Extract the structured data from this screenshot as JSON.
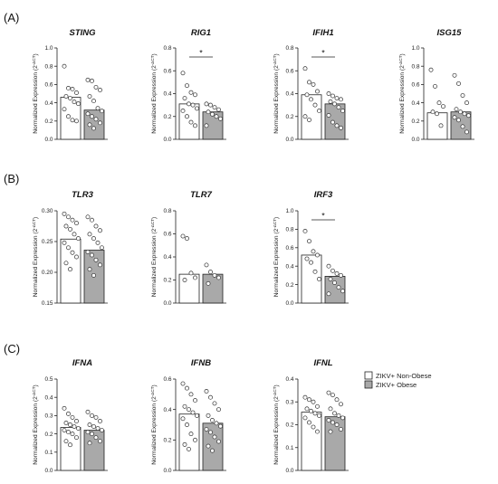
{
  "panels": [
    {
      "label": "(A)"
    },
    {
      "label": "(B)"
    },
    {
      "label": "(C)"
    }
  ],
  "legend": {
    "items": [
      {
        "label": "ZIKV+ Non-Obese",
        "color": "#ffffff"
      },
      {
        "label": "ZIKV+ Obese",
        "color": "#a9a9a9"
      }
    ]
  },
  "colors": {
    "non_obese_bar": "#ffffff",
    "obese_bar": "#a9a9a9",
    "stroke": "#222222",
    "point": "#ffffff"
  },
  "chart_data": [
    {
      "type": "bar",
      "panel": "(A)",
      "title": "STING",
      "ylabel": "Normalized Expression (2^-ΔCT)",
      "ylim": [
        0.0,
        1.0
      ],
      "yticks": [
        "0.0",
        "0.2",
        "0.4",
        "0.6",
        "0.8",
        "1.0"
      ],
      "significance": "",
      "series": [
        {
          "name": "ZIKV+ Non-Obese",
          "values": [
            0.46
          ],
          "points": [
            0.8,
            0.56,
            0.55,
            0.51,
            0.47,
            0.45,
            0.41,
            0.39,
            0.33,
            0.25,
            0.21,
            0.2
          ]
        },
        {
          "name": "ZIKV+ Obese",
          "values": [
            0.32
          ],
          "points": [
            0.65,
            0.64,
            0.57,
            0.54,
            0.47,
            0.42,
            0.34,
            0.31,
            0.28,
            0.25,
            0.22,
            0.18,
            0.16,
            0.12
          ]
        }
      ]
    },
    {
      "type": "bar",
      "panel": "(A)",
      "title": "RIG1",
      "ylabel": "Normalized Expression (2^-ΔCT)",
      "ylim": [
        0.0,
        0.8
      ],
      "yticks": [
        "0.0",
        "0.2",
        "0.4",
        "0.6",
        "0.8"
      ],
      "significance": "*",
      "series": [
        {
          "name": "ZIKV+ Non-Obese",
          "values": [
            0.31
          ],
          "points": [
            0.58,
            0.47,
            0.41,
            0.39,
            0.36,
            0.31,
            0.3,
            0.27,
            0.25,
            0.2,
            0.15,
            0.12
          ]
        },
        {
          "name": "ZIKV+ Obese",
          "values": [
            0.24
          ],
          "points": [
            0.31,
            0.3,
            0.28,
            0.26,
            0.24,
            0.22,
            0.2,
            0.18,
            0.12
          ]
        }
      ]
    },
    {
      "type": "bar",
      "panel": "(A)",
      "title": "IFIH1",
      "ylabel": "Normalized Expression (2^-ΔCT)",
      "ylim": [
        0.0,
        0.8
      ],
      "yticks": [
        "0.0",
        "0.2",
        "0.4",
        "0.6",
        "0.8"
      ],
      "significance": "*",
      "series": [
        {
          "name": "ZIKV+ Non-Obese",
          "values": [
            0.39
          ],
          "points": [
            0.62,
            0.5,
            0.48,
            0.42,
            0.39,
            0.35,
            0.3,
            0.25,
            0.2,
            0.17
          ]
        },
        {
          "name": "ZIKV+ Obese",
          "values": [
            0.31
          ],
          "points": [
            0.4,
            0.38,
            0.36,
            0.35,
            0.33,
            0.31,
            0.28,
            0.25,
            0.21,
            0.15,
            0.12,
            0.1
          ]
        }
      ]
    },
    {
      "type": "bar",
      "panel": "(A)",
      "title": "ISG15",
      "ylabel": "Normalized Expression (2^-ΔCT)",
      "ylim": [
        0.0,
        1.0
      ],
      "yticks": [
        "0.0",
        "0.2",
        "0.4",
        "0.6",
        "0.8",
        "1.0"
      ],
      "significance": "",
      "series": [
        {
          "name": "ZIKV+ Non-Obese",
          "values": [
            0.29
          ],
          "points": [
            0.76,
            0.58,
            0.4,
            0.36,
            0.3,
            0.28,
            0.15
          ]
        },
        {
          "name": "ZIKV+ Obese",
          "values": [
            0.3
          ],
          "points": [
            0.7,
            0.61,
            0.48,
            0.4,
            0.33,
            0.3,
            0.28,
            0.26,
            0.24,
            0.21,
            0.14,
            0.08
          ]
        }
      ]
    },
    {
      "type": "bar",
      "panel": "(B)",
      "title": "TLR3",
      "ylabel": "Normalized Expression (2^-ΔCT)",
      "ylim": [
        0.15,
        0.3
      ],
      "yticks": [
        "0.15",
        "0.20",
        "0.25",
        "0.30"
      ],
      "significance": "",
      "series": [
        {
          "name": "ZIKV+ Non-Obese",
          "values": [
            0.254
          ],
          "points": [
            0.295,
            0.29,
            0.285,
            0.28,
            0.275,
            0.27,
            0.262,
            0.255,
            0.248,
            0.24,
            0.232,
            0.225,
            0.215,
            0.205
          ]
        },
        {
          "name": "ZIKV+ Obese",
          "values": [
            0.236
          ],
          "points": [
            0.29,
            0.285,
            0.275,
            0.268,
            0.262,
            0.255,
            0.248,
            0.24,
            0.233,
            0.228,
            0.22,
            0.212,
            0.205,
            0.195
          ]
        }
      ]
    },
    {
      "type": "bar",
      "panel": "(B)",
      "title": "TLR7",
      "ylabel": "Normalized Expression (2^-ΔCT)",
      "ylim": [
        0.0,
        0.8
      ],
      "yticks": [
        "0.0",
        "0.2",
        "0.4",
        "0.6",
        "0.8"
      ],
      "significance": "",
      "series": [
        {
          "name": "ZIKV+ Non-Obese",
          "values": [
            0.25
          ],
          "points": [
            0.58,
            0.56,
            0.26,
            0.22,
            0.2
          ]
        },
        {
          "name": "ZIKV+ Obese",
          "values": [
            0.25
          ],
          "points": [
            0.33,
            0.27,
            0.24,
            0.22,
            0.17
          ]
        }
      ]
    },
    {
      "type": "bar",
      "panel": "(B)",
      "title": "IRF3",
      "ylabel": "Normalized Expression (2^-ΔCT)",
      "ylim": [
        0.0,
        1.0
      ],
      "yticks": [
        "0.0",
        "0.2",
        "0.4",
        "0.6",
        "0.8",
        "1.0"
      ],
      "significance": "*",
      "series": [
        {
          "name": "ZIKV+ Non-Obese",
          "values": [
            0.52
          ],
          "points": [
            0.78,
            0.67,
            0.56,
            0.52,
            0.48,
            0.44,
            0.34,
            0.26
          ]
        },
        {
          "name": "ZIKV+ Obese",
          "values": [
            0.29
          ],
          "points": [
            0.4,
            0.35,
            0.32,
            0.3,
            0.26,
            0.22,
            0.17,
            0.13,
            0.1
          ]
        }
      ]
    },
    {
      "type": "bar",
      "panel": "(C)",
      "title": "IFNA",
      "ylabel": "Normalized Expression (2^-ΔCT)",
      "ylim": [
        0.0,
        0.5
      ],
      "yticks": [
        "0.0",
        "0.1",
        "0.2",
        "0.3",
        "0.4",
        "0.5"
      ],
      "significance": "",
      "series": [
        {
          "name": "ZIKV+ Non-Obese",
          "values": [
            0.235
          ],
          "points": [
            0.34,
            0.31,
            0.29,
            0.27,
            0.26,
            0.25,
            0.24,
            0.23,
            0.22,
            0.21,
            0.2,
            0.18,
            0.16,
            0.14
          ]
        },
        {
          "name": "ZIKV+ Obese",
          "values": [
            0.22
          ],
          "points": [
            0.32,
            0.3,
            0.29,
            0.27,
            0.25,
            0.24,
            0.23,
            0.22,
            0.21,
            0.2,
            0.18,
            0.16,
            0.15
          ]
        }
      ]
    },
    {
      "type": "bar",
      "panel": "(C)",
      "title": "IFNB",
      "ylabel": "Normalized Expression (2^-ΔCT)",
      "ylim": [
        0.0,
        0.6
      ],
      "yticks": [
        "0.0",
        "0.2",
        "0.4",
        "0.6"
      ],
      "significance": "",
      "series": [
        {
          "name": "ZIKV+ Non-Obese",
          "values": [
            0.37
          ],
          "points": [
            0.57,
            0.54,
            0.5,
            0.46,
            0.42,
            0.4,
            0.38,
            0.36,
            0.34,
            0.3,
            0.24,
            0.2,
            0.17,
            0.14
          ]
        },
        {
          "name": "ZIKV+ Obese",
          "values": [
            0.31
          ],
          "points": [
            0.52,
            0.48,
            0.44,
            0.4,
            0.36,
            0.33,
            0.31,
            0.29,
            0.27,
            0.25,
            0.22,
            0.19,
            0.16,
            0.13
          ]
        }
      ]
    },
    {
      "type": "bar",
      "panel": "(C)",
      "title": "IFNL",
      "ylabel": "Normalized Expression (2^-ΔCT)",
      "ylim": [
        0.0,
        0.4
      ],
      "yticks": [
        "0.0",
        "0.1",
        "0.2",
        "0.3",
        "0.4"
      ],
      "significance": "",
      "series": [
        {
          "name": "ZIKV+ Non-Obese",
          "values": [
            0.255
          ],
          "points": [
            0.32,
            0.31,
            0.3,
            0.28,
            0.27,
            0.26,
            0.25,
            0.24,
            0.23,
            0.21,
            0.19,
            0.17
          ]
        },
        {
          "name": "ZIKV+ Obese",
          "values": [
            0.235
          ],
          "points": [
            0.34,
            0.33,
            0.31,
            0.29,
            0.27,
            0.25,
            0.24,
            0.23,
            0.22,
            0.21,
            0.2,
            0.18,
            0.17
          ]
        }
      ]
    }
  ]
}
